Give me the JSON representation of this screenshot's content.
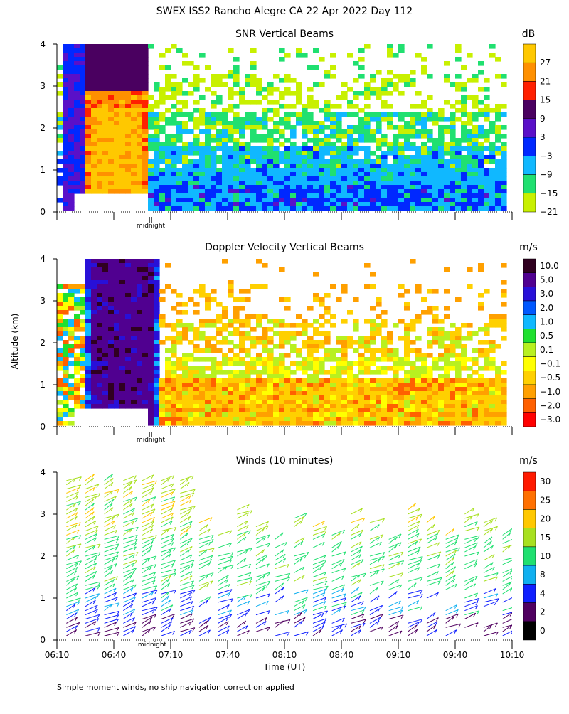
{
  "header": {
    "title": "SWEX ISS2 Rancho Alegre CA  22 Apr 2022 Day 112"
  },
  "shared": {
    "ylabel": "Altitude (km)",
    "xlabel": "Time (UT)",
    "midnight_label": "midnight",
    "midnight_mark": "||",
    "footnote": "Simple moment winds, no ship navigation correction applied"
  },
  "chart_data": [
    {
      "id": "snr",
      "type": "heatmap",
      "title": "SNR Vertical Beams",
      "ylim": [
        0,
        4
      ],
      "yticks": [
        0,
        1,
        2,
        3,
        4
      ],
      "xlim": [
        0,
        240
      ],
      "colorbar": {
        "unit": "dB",
        "labels": [
          "27",
          "21",
          "15",
          "9",
          "3",
          "−3",
          "−9",
          "−15",
          "−21"
        ],
        "colors": [
          "#ffc800",
          "#ff9000",
          "#ff2000",
          "#4a0060",
          "#5a10c8",
          "#0028ff",
          "#10b8ff",
          "#20e070",
          "#c8f000"
        ]
      }
    },
    {
      "id": "velocity",
      "type": "heatmap",
      "title": "Doppler Velocity Vertical Beams",
      "ylim": [
        0,
        4
      ],
      "yticks": [
        0,
        1,
        2,
        3,
        4
      ],
      "xlim": [
        0,
        240
      ],
      "colorbar": {
        "unit": "m/s",
        "labels": [
          "10.0",
          "5.0",
          "3.0",
          "2.0",
          "1.0",
          "0.5",
          "0.1",
          "−0.1",
          "−0.5",
          "−1.0",
          "−2.0",
          "−3.0"
        ],
        "colors": [
          "#300020",
          "#500090",
          "#2810d8",
          "#0058ff",
          "#10b8ff",
          "#20e030",
          "#b8f020",
          "#ffff00",
          "#ffd000",
          "#ffa000",
          "#ff6000",
          "#ff0000"
        ]
      }
    },
    {
      "id": "winds",
      "type": "scatter",
      "title": "Winds (10 minutes)",
      "ylim": [
        0,
        4
      ],
      "yticks": [
        0,
        1,
        2,
        3,
        4
      ],
      "xlim": [
        0,
        240
      ],
      "x_tick_labels": [
        "06:10",
        "06:40",
        "07:10",
        "07:40",
        "08:10",
        "08:40",
        "09:10",
        "09:40",
        "10:10"
      ],
      "colorbar": {
        "unit": "m/s",
        "labels": [
          "30",
          "25",
          "20",
          "15",
          "10",
          "8",
          "4",
          "2",
          "0"
        ],
        "colors": [
          "#ff1a00",
          "#ff7000",
          "#ffc800",
          "#a8e020",
          "#20e070",
          "#10b0f0",
          "#1020ff",
          "#500060",
          "#000000"
        ]
      }
    }
  ]
}
